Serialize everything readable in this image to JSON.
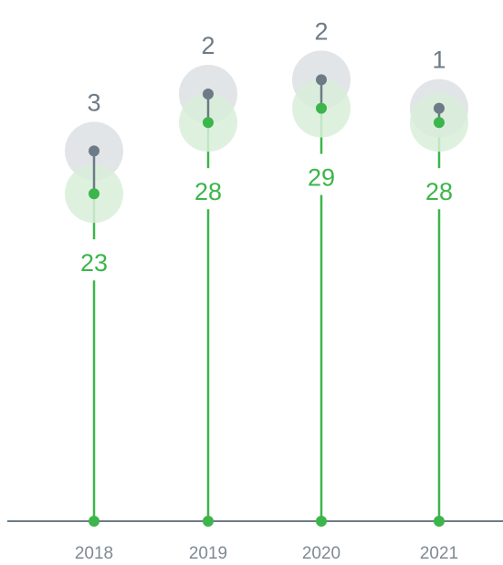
{
  "chart_data": {
    "type": "lollipop",
    "categories": [
      "2018",
      "2019",
      "2020",
      "2021"
    ],
    "series": [
      {
        "values": [
          23,
          28,
          29,
          28
        ],
        "color": "#3cb54a",
        "halo_color": "#d8efd9"
      },
      {
        "values": [
          3,
          2,
          2,
          1
        ],
        "color": "#6d7b86",
        "halo_color": "#dfe2e4"
      }
    ],
    "axis_color": "#6d7b86",
    "tick_label_color": "#7e8a94",
    "grid": false,
    "legend": "none"
  }
}
